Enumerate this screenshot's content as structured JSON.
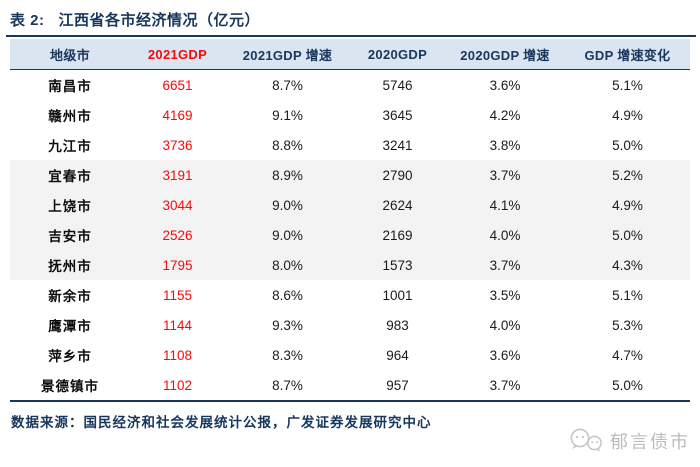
{
  "title": {
    "label": "表 2:",
    "text": "江西省各市经济情况（亿元）"
  },
  "table": {
    "columns": [
      {
        "label": "地级市",
        "highlight": false
      },
      {
        "label": "2021GDP",
        "highlight": true
      },
      {
        "label": "2021GDP 增速",
        "highlight": false
      },
      {
        "label": "2020GDP",
        "highlight": false
      },
      {
        "label": "2020GDP 增速",
        "highlight": false
      },
      {
        "label": "GDP 增速变化",
        "highlight": false
      }
    ],
    "rows": [
      [
        "南昌市",
        "6651",
        "8.7%",
        "5746",
        "3.6%",
        "5.1%"
      ],
      [
        "赣州市",
        "4169",
        "9.1%",
        "3645",
        "4.2%",
        "4.9%"
      ],
      [
        "九江市",
        "3736",
        "8.8%",
        "3241",
        "3.8%",
        "5.0%"
      ],
      [
        "宜春市",
        "3191",
        "8.9%",
        "2790",
        "3.7%",
        "5.2%"
      ],
      [
        "上饶市",
        "3044",
        "9.0%",
        "2624",
        "4.1%",
        "4.9%"
      ],
      [
        "吉安市",
        "2526",
        "9.0%",
        "2169",
        "4.0%",
        "5.0%"
      ],
      [
        "抚州市",
        "1795",
        "8.0%",
        "1573",
        "3.7%",
        "4.3%"
      ],
      [
        "新余市",
        "1155",
        "8.6%",
        "1001",
        "3.5%",
        "5.1%"
      ],
      [
        "鹰潭市",
        "1144",
        "9.3%",
        "983",
        "4.0%",
        "5.3%"
      ],
      [
        "萍乡市",
        "1108",
        "8.3%",
        "964",
        "3.6%",
        "4.7%"
      ],
      [
        "景德镇市",
        "1102",
        "8.7%",
        "957",
        "3.7%",
        "5.0%"
      ]
    ],
    "shaded_rows": [
      3,
      4,
      5,
      6
    ]
  },
  "footer": {
    "source": "数据来源：国民经济和社会发展统计公报，广发证券发展研究中心"
  },
  "watermark": {
    "text": "郁言债市",
    "icon": "chat-bubbles-icon"
  },
  "colors": {
    "navy": "#17375d",
    "accent_red": "#f40b0b",
    "header_bg": "#dbe5f1",
    "stripe": "#f3f3f3",
    "watermark_gray": "#bcbcbc"
  }
}
